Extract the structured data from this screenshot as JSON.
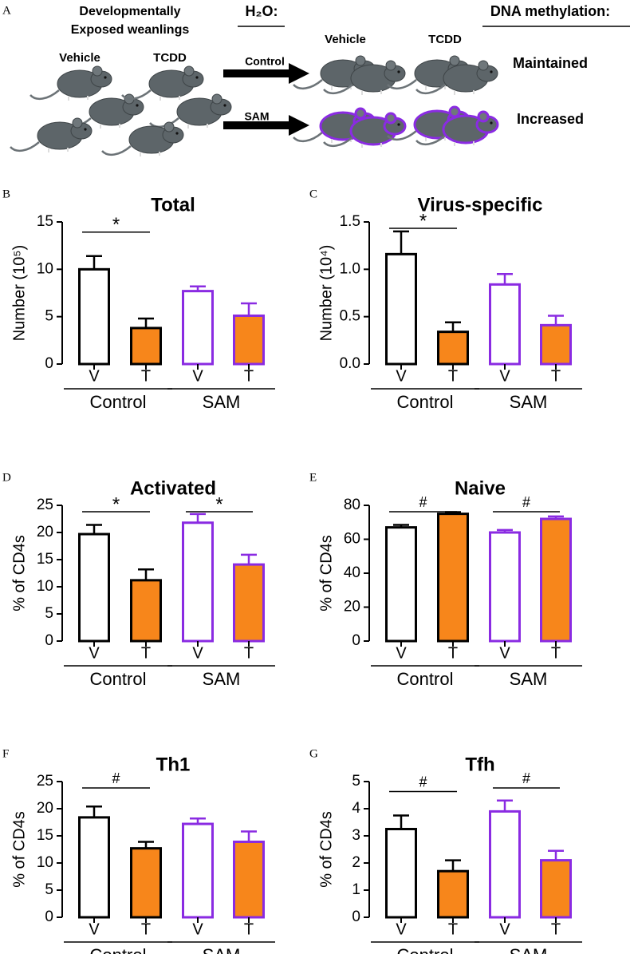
{
  "panel_a": {
    "label": "A",
    "heading_lines": [
      "Developmentally",
      "Exposed weanlings"
    ],
    "left_groups": [
      {
        "text": "Vehicle",
        "color": "#000000"
      },
      {
        "text": "TCDD",
        "color": "#f26a1b"
      }
    ],
    "water_heading": "H₂O:",
    "arrows": [
      {
        "text": "Control",
        "color": "#000000"
      },
      {
        "text": "SAM",
        "color": "#8a2be2"
      }
    ],
    "right_groups": [
      {
        "text": "Vehicle",
        "color": "#000000"
      },
      {
        "text": "TCDD",
        "color": "#f26a1b"
      }
    ],
    "methylation_heading": "DNA methylation:",
    "outcomes": [
      {
        "text": "Maintained",
        "color": "#000000"
      },
      {
        "text": "Increased",
        "color": "#8a2be2"
      }
    ]
  },
  "chart_data": [
    {
      "type": "bar",
      "panel_label": "B",
      "title": "Total",
      "y_label": "Number (10⁵)",
      "categories": [
        "V",
        "T",
        "V",
        "T"
      ],
      "groups": [
        {
          "name": "Control",
          "color": "#000000"
        },
        {
          "name": "SAM",
          "color": "#8a2be2"
        }
      ],
      "fill_colors": [
        "#ffffff",
        "#f7861b",
        "#ffffff",
        "#f7861b"
      ],
      "values": [
        10.0,
        3.8,
        7.7,
        5.1
      ],
      "errors": [
        1.4,
        1.0,
        0.5,
        1.3
      ],
      "ylim": [
        0,
        15
      ],
      "yticks": [
        0,
        5,
        10,
        15
      ],
      "annotations": [
        {
          "text": "*",
          "group": "Control"
        }
      ]
    },
    {
      "type": "bar",
      "panel_label": "C",
      "title": "Virus-specific",
      "y_label": "Number (10⁴)",
      "categories": [
        "V",
        "T",
        "V",
        "T"
      ],
      "groups": [
        {
          "name": "Control",
          "color": "#000000"
        },
        {
          "name": "SAM",
          "color": "#8a2be2"
        }
      ],
      "fill_colors": [
        "#ffffff",
        "#f7861b",
        "#ffffff",
        "#f7861b"
      ],
      "values": [
        1.16,
        0.34,
        0.84,
        0.41
      ],
      "errors": [
        0.24,
        0.1,
        0.11,
        0.1
      ],
      "ylim": [
        0,
        1.5
      ],
      "yticks": [
        {
          "value": 0,
          "label": "0.0"
        },
        0.5,
        {
          "value": 1,
          "label": "1.0"
        },
        1.5
      ],
      "annotations": [
        {
          "text": "*",
          "group": "Control"
        }
      ]
    },
    {
      "type": "bar",
      "panel_label": "D",
      "title": "Activated",
      "y_label": "% of CD4s",
      "categories": [
        "V",
        "T",
        "V",
        "T"
      ],
      "groups": [
        {
          "name": "Control",
          "color": "#000000"
        },
        {
          "name": "SAM",
          "color": "#8a2be2"
        }
      ],
      "fill_colors": [
        "#ffffff",
        "#f7861b",
        "#ffffff",
        "#f7861b"
      ],
      "values": [
        19.7,
        11.2,
        21.8,
        14.1
      ],
      "errors": [
        1.7,
        2.0,
        1.6,
        1.8
      ],
      "ylim": [
        0,
        25
      ],
      "yticks": [
        0,
        5,
        10,
        15,
        20,
        25
      ],
      "annotations": [
        {
          "text": "*",
          "group": "Control"
        },
        {
          "text": "*",
          "group": "SAM"
        }
      ]
    },
    {
      "type": "bar",
      "panel_label": "E",
      "title": "Naive",
      "y_label": "% of CD4s",
      "categories": [
        "V",
        "T",
        "V",
        "T"
      ],
      "groups": [
        {
          "name": "Control",
          "color": "#000000"
        },
        {
          "name": "SAM",
          "color": "#8a2be2"
        }
      ],
      "fill_colors": [
        "#ffffff",
        "#f7861b",
        "#ffffff",
        "#f7861b"
      ],
      "values": [
        67,
        75,
        64,
        72
      ],
      "errors": [
        1.5,
        1,
        1.5,
        1.5
      ],
      "ylim": [
        0,
        80
      ],
      "yticks": [
        0,
        20,
        40,
        60,
        80
      ],
      "annotations": [
        {
          "text": "#",
          "group": "Control"
        },
        {
          "text": "#",
          "group": "SAM"
        }
      ]
    },
    {
      "type": "bar",
      "panel_label": "F",
      "title": "Th1",
      "y_label": "% of CD4s",
      "categories": [
        "V",
        "T",
        "V",
        "T"
      ],
      "groups": [
        {
          "name": "Control",
          "color": "#000000"
        },
        {
          "name": "SAM",
          "color": "#8a2be2"
        }
      ],
      "fill_colors": [
        "#ffffff",
        "#f7861b",
        "#ffffff",
        "#f7861b"
      ],
      "values": [
        18.4,
        12.7,
        17.2,
        13.9
      ],
      "errors": [
        2.0,
        1.2,
        1.0,
        1.9
      ],
      "ylim": [
        0,
        25
      ],
      "yticks": [
        0,
        5,
        10,
        15,
        20,
        25
      ],
      "annotations": [
        {
          "text": "#",
          "group": "Control"
        }
      ]
    },
    {
      "type": "bar",
      "panel_label": "G",
      "title": "Tfh",
      "y_label": "% of CD4s",
      "categories": [
        "V",
        "T",
        "V",
        "T"
      ],
      "groups": [
        {
          "name": "Control",
          "color": "#000000"
        },
        {
          "name": "SAM",
          "color": "#8a2be2"
        }
      ],
      "fill_colors": [
        "#ffffff",
        "#f7861b",
        "#ffffff",
        "#f7861b"
      ],
      "values": [
        3.25,
        1.7,
        3.9,
        2.1
      ],
      "errors": [
        0.5,
        0.4,
        0.4,
        0.35
      ],
      "ylim": [
        0,
        5
      ],
      "yticks": [
        0,
        1,
        2,
        3,
        4,
        5
      ],
      "annotations": [
        {
          "text": "#",
          "group": "Control"
        },
        {
          "text": "#",
          "group": "SAM"
        }
      ]
    }
  ]
}
